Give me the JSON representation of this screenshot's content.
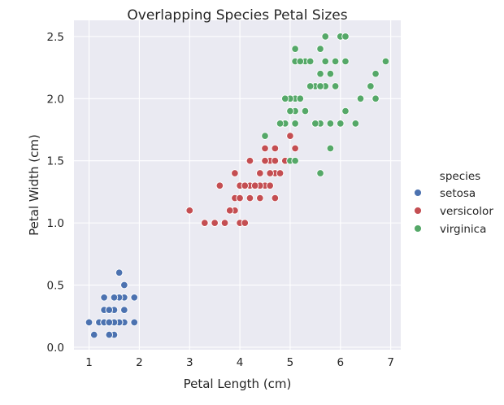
{
  "chart_data": {
    "type": "scatter",
    "title": "Overlapping Species Petal Sizes",
    "xlabel": "Petal Length (cm)",
    "ylabel": "Petal Width (cm)",
    "xlim": [
      0.7,
      7.2
    ],
    "ylim": [
      -0.02,
      2.63
    ],
    "xticks": [
      1,
      2,
      3,
      4,
      5,
      6,
      7
    ],
    "xtick_labels": [
      "1",
      "2",
      "3",
      "4",
      "5",
      "6",
      "7"
    ],
    "yticks": [
      0.0,
      0.5,
      1.0,
      1.5,
      2.0,
      2.5
    ],
    "ytick_labels": [
      "0.0",
      "0.5",
      "1.0",
      "1.5",
      "2.0",
      "2.5"
    ],
    "grid": true,
    "legend": {
      "title": "species",
      "position": "right"
    },
    "series": [
      {
        "name": "setosa",
        "color": "#4c72b0",
        "points": [
          [
            1.4,
            0.2
          ],
          [
            1.4,
            0.2
          ],
          [
            1.3,
            0.2
          ],
          [
            1.5,
            0.2
          ],
          [
            1.4,
            0.2
          ],
          [
            1.7,
            0.4
          ],
          [
            1.4,
            0.3
          ],
          [
            1.5,
            0.2
          ],
          [
            1.4,
            0.2
          ],
          [
            1.5,
            0.1
          ],
          [
            1.5,
            0.2
          ],
          [
            1.6,
            0.2
          ],
          [
            1.4,
            0.1
          ],
          [
            1.1,
            0.1
          ],
          [
            1.2,
            0.2
          ],
          [
            1.5,
            0.4
          ],
          [
            1.3,
            0.4
          ],
          [
            1.4,
            0.3
          ],
          [
            1.7,
            0.3
          ],
          [
            1.5,
            0.3
          ],
          [
            1.7,
            0.2
          ],
          [
            1.5,
            0.4
          ],
          [
            1.0,
            0.2
          ],
          [
            1.7,
            0.5
          ],
          [
            1.9,
            0.2
          ],
          [
            1.6,
            0.2
          ],
          [
            1.6,
            0.4
          ],
          [
            1.5,
            0.2
          ],
          [
            1.4,
            0.2
          ],
          [
            1.6,
            0.2
          ],
          [
            1.6,
            0.2
          ],
          [
            1.5,
            0.4
          ],
          [
            1.5,
            0.1
          ],
          [
            1.4,
            0.2
          ],
          [
            1.5,
            0.2
          ],
          [
            1.2,
            0.2
          ],
          [
            1.3,
            0.2
          ],
          [
            1.4,
            0.1
          ],
          [
            1.3,
            0.2
          ],
          [
            1.5,
            0.2
          ],
          [
            1.3,
            0.3
          ],
          [
            1.3,
            0.3
          ],
          [
            1.3,
            0.2
          ],
          [
            1.6,
            0.6
          ],
          [
            1.9,
            0.4
          ],
          [
            1.4,
            0.3
          ],
          [
            1.6,
            0.2
          ],
          [
            1.4,
            0.2
          ],
          [
            1.5,
            0.2
          ],
          [
            1.4,
            0.2
          ]
        ]
      },
      {
        "name": "versicolor",
        "color": "#c44e52",
        "points": [
          [
            4.7,
            1.4
          ],
          [
            4.5,
            1.5
          ],
          [
            4.9,
            1.5
          ],
          [
            4.0,
            1.3
          ],
          [
            4.6,
            1.5
          ],
          [
            4.5,
            1.3
          ],
          [
            4.7,
            1.6
          ],
          [
            3.3,
            1.0
          ],
          [
            4.6,
            1.3
          ],
          [
            3.9,
            1.4
          ],
          [
            3.5,
            1.0
          ],
          [
            4.2,
            1.5
          ],
          [
            4.0,
            1.0
          ],
          [
            4.7,
            1.4
          ],
          [
            3.6,
            1.3
          ],
          [
            4.4,
            1.4
          ],
          [
            4.5,
            1.5
          ],
          [
            4.1,
            1.0
          ],
          [
            4.5,
            1.5
          ],
          [
            3.9,
            1.1
          ],
          [
            4.8,
            1.8
          ],
          [
            4.0,
            1.3
          ],
          [
            4.9,
            1.5
          ],
          [
            4.7,
            1.2
          ],
          [
            4.3,
            1.3
          ],
          [
            4.4,
            1.4
          ],
          [
            4.8,
            1.4
          ],
          [
            5.0,
            1.7
          ],
          [
            4.5,
            1.5
          ],
          [
            3.5,
            1.0
          ],
          [
            3.8,
            1.1
          ],
          [
            3.7,
            1.0
          ],
          [
            3.9,
            1.2
          ],
          [
            5.1,
            1.6
          ],
          [
            4.5,
            1.5
          ],
          [
            4.5,
            1.6
          ],
          [
            4.7,
            1.5
          ],
          [
            4.4,
            1.3
          ],
          [
            4.1,
            1.3
          ],
          [
            4.0,
            1.3
          ],
          [
            4.4,
            1.2
          ],
          [
            4.6,
            1.4
          ],
          [
            4.0,
            1.2
          ],
          [
            3.3,
            1.0
          ],
          [
            4.2,
            1.3
          ],
          [
            4.2,
            1.2
          ],
          [
            4.2,
            1.3
          ],
          [
            4.3,
            1.3
          ],
          [
            3.0,
            1.1
          ],
          [
            4.1,
            1.3
          ]
        ]
      },
      {
        "name": "virginica",
        "color": "#55a868",
        "points": [
          [
            6.0,
            2.5
          ],
          [
            5.1,
            1.9
          ],
          [
            5.9,
            2.1
          ],
          [
            5.6,
            1.8
          ],
          [
            5.8,
            2.2
          ],
          [
            6.6,
            2.1
          ],
          [
            4.5,
            1.7
          ],
          [
            6.3,
            1.8
          ],
          [
            5.8,
            1.8
          ],
          [
            6.1,
            2.5
          ],
          [
            5.1,
            2.0
          ],
          [
            5.3,
            1.9
          ],
          [
            5.5,
            2.1
          ],
          [
            5.0,
            2.0
          ],
          [
            5.1,
            2.4
          ],
          [
            5.3,
            2.3
          ],
          [
            5.5,
            1.8
          ],
          [
            6.7,
            2.2
          ],
          [
            6.9,
            2.3
          ],
          [
            5.0,
            1.5
          ],
          [
            5.7,
            2.3
          ],
          [
            4.9,
            2.0
          ],
          [
            6.7,
            2.0
          ],
          [
            4.9,
            1.8
          ],
          [
            5.7,
            2.1
          ],
          [
            6.0,
            1.8
          ],
          [
            4.8,
            1.8
          ],
          [
            4.9,
            1.8
          ],
          [
            5.6,
            2.1
          ],
          [
            5.8,
            1.6
          ],
          [
            6.1,
            1.9
          ],
          [
            6.4,
            2.0
          ],
          [
            5.6,
            2.2
          ],
          [
            5.1,
            1.5
          ],
          [
            5.6,
            1.4
          ],
          [
            6.1,
            2.3
          ],
          [
            5.6,
            2.4
          ],
          [
            5.5,
            1.8
          ],
          [
            4.8,
            1.8
          ],
          [
            5.4,
            2.1
          ],
          [
            5.6,
            2.4
          ],
          [
            5.1,
            2.3
          ],
          [
            5.1,
            1.9
          ],
          [
            5.9,
            2.3
          ],
          [
            5.7,
            2.5
          ],
          [
            5.2,
            2.3
          ],
          [
            5.0,
            1.9
          ],
          [
            5.2,
            2.0
          ],
          [
            5.4,
            2.3
          ],
          [
            5.1,
            1.8
          ]
        ]
      }
    ]
  }
}
